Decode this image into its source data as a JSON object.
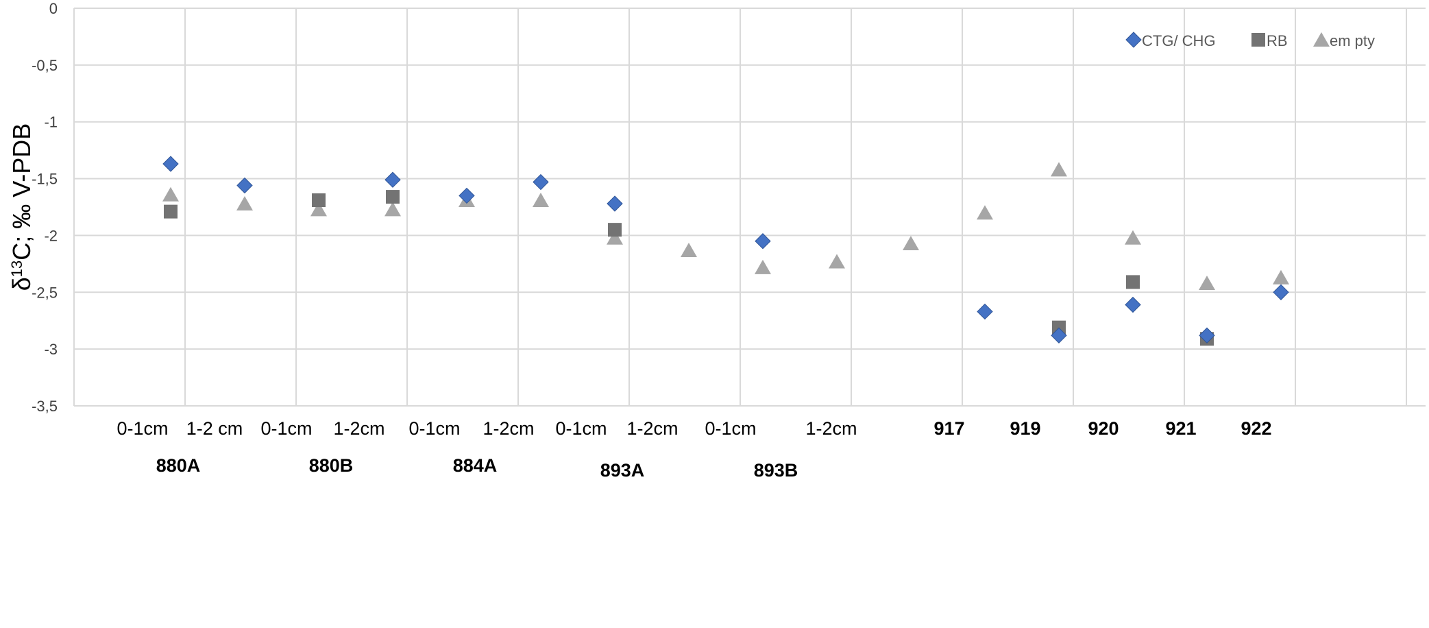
{
  "chart_data": {
    "type": "scatter",
    "ylabel_prefix": "δ",
    "ylabel_sup": "13",
    "ylabel_rest": "C; ‰ V-PDB",
    "ylim": [
      -3.5,
      0
    ],
    "yticks": [
      0,
      -0.5,
      -1,
      -1.5,
      -2,
      -2.5,
      -3,
      -3.5
    ],
    "ytick_labels": [
      "0",
      "-0,5",
      "-1",
      "-1,5",
      "-2",
      "-2,5",
      "-3",
      "-3,5"
    ],
    "grid": true,
    "legend_position": "top-right",
    "categories": [
      {
        "label": "0-1cm",
        "bold": false
      },
      {
        "label": "1-2 cm",
        "bold": false
      },
      {
        "label": "0-1cm",
        "bold": false
      },
      {
        "label": "1-2cm",
        "bold": false
      },
      {
        "label": "0-1cm",
        "bold": false
      },
      {
        "label": "1-2cm",
        "bold": false
      },
      {
        "label": "0-1cm",
        "bold": false
      },
      {
        "label": "1-2cm",
        "bold": false
      },
      {
        "label": "0-1cm",
        "bold": false
      },
      {
        "label": "1-2cm",
        "bold": false
      },
      {
        "label": "917",
        "bold": true
      },
      {
        "label": "919",
        "bold": true
      },
      {
        "label": "920",
        "bold": true
      },
      {
        "label": "921",
        "bold": true
      },
      {
        "label": "922",
        "bold": true
      }
    ],
    "groups": [
      {
        "label": "880A",
        "span": [
          1,
          2
        ]
      },
      {
        "label": "880B",
        "span": [
          3,
          4
        ]
      },
      {
        "label": "884A",
        "span": [
          5,
          6
        ]
      },
      {
        "label": "893A",
        "span": [
          7,
          8
        ]
      },
      {
        "label": "893B",
        "span": [
          9,
          10
        ]
      }
    ],
    "series": [
      {
        "name": "CTG/ CHG",
        "marker": "diamond",
        "color": "#4472C4",
        "points": [
          {
            "x": 1,
            "y": -1.37
          },
          {
            "x": 2,
            "y": -1.56
          },
          {
            "x": 4,
            "y": -1.51
          },
          {
            "x": 5,
            "y": -1.65
          },
          {
            "x": 6,
            "y": -1.53
          },
          {
            "x": 7,
            "y": -1.72
          },
          {
            "x": 9,
            "y": -2.05
          },
          {
            "x": 12,
            "y": -2.67
          },
          {
            "x": 13,
            "y": -2.88
          },
          {
            "x": 14,
            "y": -2.61
          },
          {
            "x": 15,
            "y": -2.88
          },
          {
            "x": 16,
            "y": -2.5
          }
        ]
      },
      {
        "name": "RB",
        "marker": "square",
        "color": "#737373",
        "points": [
          {
            "x": 1,
            "y": -1.79
          },
          {
            "x": 3,
            "y": -1.69
          },
          {
            "x": 4,
            "y": -1.66
          },
          {
            "x": 7,
            "y": -1.95
          },
          {
            "x": 13,
            "y": -2.81
          },
          {
            "x": 14,
            "y": -2.41
          },
          {
            "x": 15,
            "y": -2.91
          }
        ]
      },
      {
        "name": "em pty",
        "marker": "triangle",
        "color": "#A6A6A6",
        "points": [
          {
            "x": 1,
            "y": -1.64
          },
          {
            "x": 2,
            "y": -1.72
          },
          {
            "x": 3,
            "y": -1.77
          },
          {
            "x": 4,
            "y": -1.77
          },
          {
            "x": 5,
            "y": -1.69
          },
          {
            "x": 6,
            "y": -1.69
          },
          {
            "x": 7,
            "y": -2.02
          },
          {
            "x": 8,
            "y": -2.13
          },
          {
            "x": 9,
            "y": -2.28
          },
          {
            "x": 10,
            "y": -2.23
          },
          {
            "x": 11,
            "y": -2.07
          },
          {
            "x": 12,
            "y": -1.8
          },
          {
            "x": 13,
            "y": -1.42
          },
          {
            "x": 14,
            "y": -2.02
          },
          {
            "x": 15,
            "y": -2.42
          },
          {
            "x": 16,
            "y": -2.37
          }
        ]
      }
    ]
  }
}
